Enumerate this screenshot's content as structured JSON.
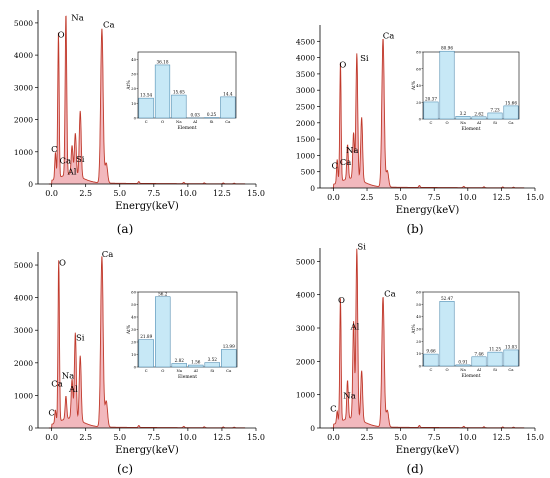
{
  "panel_captions": [
    "(a)",
    "(b)",
    "(c)",
    "(d)"
  ],
  "chart_data": [
    {
      "type": "area",
      "panel": "(a)",
      "xlabel": "Energy(keV)",
      "ylabel": "",
      "xlim": [
        -1,
        15
      ],
      "ylim": [
        0,
        5400
      ],
      "xticks": [
        "0.0",
        "2.5",
        "5.0",
        "7.5",
        "10.0",
        "12.5",
        "15.0"
      ],
      "yticks": [
        "0",
        "1000",
        "2000",
        "3000",
        "4000",
        "5000"
      ],
      "peaks": [
        {
          "x": 0.28,
          "y": 830,
          "label": "C"
        },
        {
          "x": 0.5,
          "y": 4500,
          "label": "O"
        },
        {
          "x": 1.05,
          "y": 5000,
          "label": "Na"
        },
        {
          "x": 1.5,
          "y": 900,
          "label": "Al"
        },
        {
          "x": 1.74,
          "y": 1300,
          "label": "Si"
        },
        {
          "x": 2.1,
          "y": 2050,
          "label": ""
        },
        {
          "x": 3.69,
          "y": 4800,
          "label": "Ca"
        },
        {
          "x": 4.01,
          "y": 620,
          "label": ""
        }
      ],
      "peak_labels": [
        {
          "text": "O",
          "x": 0.7,
          "y": 4550
        },
        {
          "text": "Na",
          "x": 1.9,
          "y": 5080
        },
        {
          "text": "Ca",
          "x": 4.2,
          "y": 4850
        },
        {
          "text": "C",
          "x": 0.2,
          "y": 990
        },
        {
          "text": "Ca",
          "x": 1.0,
          "y": 630
        },
        {
          "text": "Si",
          "x": 2.1,
          "y": 690
        },
        {
          "text": "Al",
          "x": 1.5,
          "y": 300
        }
      ],
      "inset": {
        "type": "bar",
        "categories": [
          "C",
          "O",
          "Na",
          "Al",
          "Si",
          "Ca"
        ],
        "values": [
          13.54,
          36.18,
          15.65,
          0.03,
          0.25,
          14.4
        ],
        "ylabel": "At%",
        "xlabel": "Element",
        "ylim": [
          0,
          45
        ],
        "yticks": [
          "0",
          "10",
          "20",
          "30",
          "40"
        ]
      }
    },
    {
      "type": "area",
      "panel": "(b)",
      "xlabel": "Energy(keV)",
      "ylabel": "",
      "xlim": [
        -1,
        15
      ],
      "ylim": [
        0,
        5000
      ],
      "xticks": [
        "0.0",
        "2.5",
        "5.0",
        "7.5",
        "10.0",
        "12.5",
        "15.0"
      ],
      "yticks": [
        "0",
        "500",
        "1000",
        "1500",
        "2000",
        "2500",
        "3000",
        "3500",
        "4000",
        "4500"
      ],
      "peaks": [
        {
          "x": 0.28,
          "y": 720,
          "label": "C"
        },
        {
          "x": 0.52,
          "y": 3650,
          "label": "O"
        },
        {
          "x": 1.05,
          "y": 1050,
          "label": "Na"
        },
        {
          "x": 1.5,
          "y": 1400,
          "label": ""
        },
        {
          "x": 1.74,
          "y": 3850,
          "label": "Si"
        },
        {
          "x": 2.1,
          "y": 1950,
          "label": ""
        },
        {
          "x": 3.69,
          "y": 4550,
          "label": "Ca"
        },
        {
          "x": 4.01,
          "y": 500,
          "label": ""
        }
      ],
      "peak_labels": [
        {
          "text": "O",
          "x": 0.7,
          "y": 3700
        },
        {
          "text": "Si",
          "x": 2.3,
          "y": 3900
        },
        {
          "text": "Ca",
          "x": 4.1,
          "y": 4580
        },
        {
          "text": "C",
          "x": 0.1,
          "y": 600
        },
        {
          "text": "Ca",
          "x": 0.9,
          "y": 700
        },
        {
          "text": "Na",
          "x": 1.4,
          "y": 1080
        }
      ],
      "inset": {
        "type": "bar",
        "categories": [
          "C",
          "O",
          "Na",
          "Al",
          "Si",
          "Ca"
        ],
        "values": [
          20.37,
          80.96,
          3.2,
          2.62,
          7.23,
          15.66
        ],
        "ylabel": "At%",
        "xlabel": "Element",
        "ylim": [
          0,
          80
        ],
        "yticks": [
          "0",
          "20",
          "40",
          "60",
          "80"
        ]
      }
    },
    {
      "type": "area",
      "panel": "(c)",
      "xlabel": "Energy(keV)",
      "ylabel": "",
      "xlim": [
        -1,
        15
      ],
      "ylim": [
        0,
        5400
      ],
      "xticks": [
        "0.0",
        "2.5",
        "5.0",
        "7.5",
        "10.0",
        "12.5",
        "15.0"
      ],
      "yticks": [
        "0",
        "1000",
        "2000",
        "3000",
        "4000",
        "5000"
      ],
      "peaks": [
        {
          "x": 0.28,
          "y": 400,
          "label": "C"
        },
        {
          "x": 0.52,
          "y": 4950,
          "label": "O"
        },
        {
          "x": 1.05,
          "y": 700,
          "label": "Na"
        },
        {
          "x": 1.5,
          "y": 1200,
          "label": "Al"
        },
        {
          "x": 1.74,
          "y": 2650,
          "label": "Si"
        },
        {
          "x": 2.1,
          "y": 2000,
          "label": ""
        },
        {
          "x": 3.69,
          "y": 5250,
          "label": "Ca"
        },
        {
          "x": 4.01,
          "y": 800,
          "label": ""
        }
      ],
      "peak_labels": [
        {
          "text": "O",
          "x": 0.8,
          "y": 4980
        },
        {
          "text": "Ca",
          "x": 4.1,
          "y": 5250
        },
        {
          "text": "Si",
          "x": 2.1,
          "y": 2680
        },
        {
          "text": "Ca",
          "x": 0.4,
          "y": 1280
        },
        {
          "text": "Na",
          "x": 1.2,
          "y": 1520
        },
        {
          "text": "Al",
          "x": 1.6,
          "y": 1100
        },
        {
          "text": "C",
          "x": 0.0,
          "y": 380
        }
      ],
      "inset": {
        "type": "bar",
        "categories": [
          "C",
          "O",
          "Na",
          "Al",
          "Si",
          "Ca"
        ],
        "values": [
          21.89,
          56.2,
          2.82,
          1.56,
          3.52,
          13.99
        ],
        "ylabel": "At%",
        "xlabel": "Element",
        "ylim": [
          0,
          60
        ],
        "yticks": [
          "0",
          "10",
          "20",
          "30",
          "40",
          "50",
          "60"
        ]
      }
    },
    {
      "type": "area",
      "panel": "(d)",
      "xlabel": "Energy(keV)",
      "ylabel": "",
      "xlim": [
        -1,
        15
      ],
      "ylim": [
        0,
        5400
      ],
      "xticks": [
        "0.0",
        "2.5",
        "5.0",
        "7.5",
        "10.0",
        "12.5",
        "15.0"
      ],
      "yticks": [
        "0",
        "1000",
        "2000",
        "3000",
        "4000",
        "5000"
      ],
      "peaks": [
        {
          "x": 0.28,
          "y": 350,
          "label": "C"
        },
        {
          "x": 0.52,
          "y": 3700,
          "label": "O"
        },
        {
          "x": 1.05,
          "y": 1150,
          "label": "Na"
        },
        {
          "x": 1.5,
          "y": 2900,
          "label": "Al"
        },
        {
          "x": 1.74,
          "y": 5100,
          "label": "Si"
        },
        {
          "x": 2.1,
          "y": 1500,
          "label": ""
        },
        {
          "x": 3.69,
          "y": 3900,
          "label": "Ca"
        },
        {
          "x": 4.01,
          "y": 500,
          "label": ""
        }
      ],
      "peak_labels": [
        {
          "text": "Si",
          "x": 2.1,
          "y": 5350
        },
        {
          "text": "O",
          "x": 0.6,
          "y": 3750
        },
        {
          "text": "Ca",
          "x": 4.2,
          "y": 3950
        },
        {
          "text": "Al",
          "x": 1.6,
          "y": 2950
        },
        {
          "text": "Na",
          "x": 1.2,
          "y": 880
        },
        {
          "text": "C",
          "x": 0.0,
          "y": 500
        }
      ],
      "inset": {
        "type": "bar",
        "categories": [
          "C",
          "O",
          "Na",
          "Al",
          "Si",
          "Ca"
        ],
        "values": [
          9.66,
          52.47,
          0.91,
          7.46,
          11.25,
          13.03
        ],
        "ylabel": "At%",
        "xlabel": "Element",
        "ylim": [
          0,
          60
        ],
        "yticks": [
          "0",
          "10",
          "20",
          "30",
          "40",
          "50",
          "60"
        ]
      }
    }
  ],
  "colors": {
    "line": "#c0392b",
    "fill": "#f2b8bd",
    "bar": "#c7e8f6",
    "bar_stroke": "#3a7ca5",
    "axis": "#000000"
  }
}
